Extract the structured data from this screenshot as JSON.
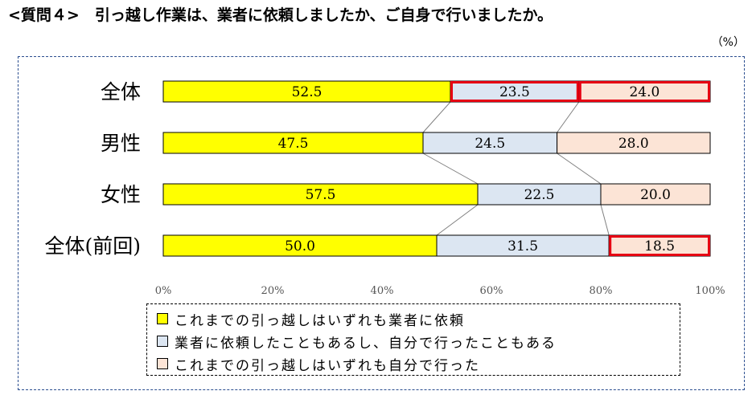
{
  "title": "<質問４>　引っ越し作業は、業者に依頼しましたか、ご自身で行いましたか。",
  "unit": "（%）",
  "colors": {
    "series_1": "#ffff00",
    "series_2": "#dce6f2",
    "series_3": "#fce4d6",
    "highlight": "#e60012"
  },
  "chart_data": {
    "type": "bar",
    "orientation": "horizontal-stacked-100",
    "categories": [
      "全体",
      "男性",
      "女性",
      "全体(前回)"
    ],
    "series": [
      {
        "name": "これまでの引っ越しはいずれも業者に依頼",
        "values": [
          52.5,
          47.5,
          57.5,
          50.0
        ],
        "color": "#ffff00"
      },
      {
        "name": "業者に依頼したこともあるし、自分で行ったこともある",
        "values": [
          23.5,
          24.5,
          22.5,
          31.5
        ],
        "color": "#dce6f2"
      },
      {
        "name": "これまでの引っ越しはいずれも自分で行った",
        "values": [
          24.0,
          28.0,
          20.0,
          18.5
        ],
        "color": "#fce4d6"
      }
    ],
    "value_labels": [
      [
        "52.5",
        "23.5",
        "24.0"
      ],
      [
        "47.5",
        "24.5",
        "28.0"
      ],
      [
        "57.5",
        "22.5",
        "20.0"
      ],
      [
        "50.0",
        "31.5",
        "18.5"
      ]
    ],
    "highlighted_segments": [
      [
        0,
        1
      ],
      [
        0,
        2
      ],
      [
        3,
        2
      ]
    ],
    "xlim": [
      0,
      100
    ],
    "x_ticks": [
      "0%",
      "20%",
      "40%",
      "60%",
      "80%",
      "100%"
    ],
    "series_lines": true,
    "grid": false,
    "legend_position": "bottom"
  }
}
